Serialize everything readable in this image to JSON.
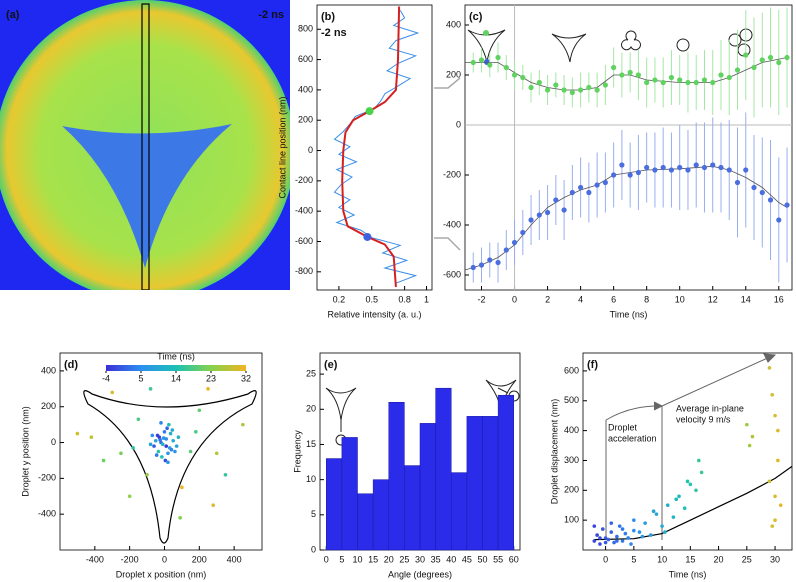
{
  "chart_data": [
    {
      "type": "image",
      "panel": "(a)",
      "annotation": "-2 ns"
    },
    {
      "type": "line",
      "panel": "(b)",
      "annotation": "-2 ns",
      "xlabel": "Relative intensity (a. u.)",
      "ylabel": "Contact line position (nm)",
      "xlim": [
        0,
        1.05
      ],
      "xticks": [
        0.2,
        0.5,
        0.8,
        1
      ],
      "ylim": [
        -920,
        960
      ],
      "yticks": [
        -800,
        -600,
        -400,
        -200,
        0,
        200,
        400,
        600,
        800
      ],
      "series": [
        {
          "color": "#3a8ee6",
          "x": [
            0.76,
            0.8,
            0.7,
            0.92,
            0.72,
            0.66,
            0.9,
            0.74,
            0.64,
            0.85,
            0.74,
            0.62,
            0.58,
            0.52,
            0.35,
            0.3,
            0.24,
            0.16,
            0.3,
            0.2,
            0.36,
            0.18,
            0.32,
            0.22,
            0.16,
            0.3,
            0.2,
            0.34,
            0.18,
            0.4,
            0.5,
            0.76,
            0.6,
            0.82,
            0.62,
            0.9,
            0.72
          ],
          "y": [
            925,
            875,
            825,
            775,
            725,
            675,
            625,
            575,
            525,
            475,
            425,
            375,
            325,
            275,
            225,
            175,
            125,
            75,
            25,
            -25,
            -75,
            -125,
            -175,
            -225,
            -275,
            -325,
            -375,
            -425,
            -475,
            -525,
            -575,
            -625,
            -675,
            -725,
            -775,
            -825,
            -875
          ]
        },
        {
          "color": "#d62020",
          "x": [
            0.75,
            0.74,
            0.72,
            0.62,
            0.48,
            0.33,
            0.26,
            0.24,
            0.23,
            0.24,
            0.28,
            0.46,
            0.62,
            0.7,
            0.72
          ],
          "y": [
            950,
            600,
            400,
            320,
            260,
            200,
            120,
            0,
            -200,
            -400,
            -500,
            -570,
            -620,
            -700,
            -900
          ]
        }
      ],
      "points": [
        {
          "color": "#4ad34a",
          "x": 0.48,
          "y": 260
        },
        {
          "color": "#3d5fe0",
          "x": 0.46,
          "y": -570
        }
      ]
    },
    {
      "type": "errorbar",
      "panel": "(c)",
      "xlabel": "Time (ns)",
      "xlim": [
        -3,
        16.8
      ],
      "xticks": [
        -2,
        0,
        2,
        4,
        6,
        8,
        10,
        12,
        14,
        16
      ],
      "ylim": [
        -660,
        480
      ],
      "yticks": [
        -600,
        -400,
        -200,
        0,
        200,
        400
      ],
      "x": [
        -2.5,
        -2,
        -1.5,
        -1,
        -0.5,
        0,
        0.5,
        1,
        1.5,
        2,
        2.5,
        3,
        3.5,
        4,
        4.5,
        5,
        5.5,
        6,
        6.5,
        7,
        7.5,
        8,
        8.5,
        9,
        9.5,
        10,
        10.5,
        11,
        11.5,
        12,
        12.5,
        13,
        13.5,
        14,
        14.5,
        15,
        15.5,
        16,
        16.5
      ],
      "series": [
        {
          "color": "#5ed35e",
          "errcolor": "#a6e6a6",
          "values": [
            250,
            260,
            240,
            270,
            230,
            200,
            190,
            150,
            170,
            140,
            160,
            140,
            130,
            140,
            150,
            140,
            160,
            230,
            200,
            210,
            200,
            170,
            180,
            170,
            190,
            180,
            170,
            170,
            180,
            170,
            200,
            190,
            220,
            280,
            230,
            260,
            270,
            250,
            270
          ],
          "errors": [
            40,
            50,
            50,
            60,
            50,
            60,
            50,
            60,
            50,
            60,
            50,
            60,
            60,
            70,
            60,
            70,
            80,
            80,
            90,
            80,
            100,
            100,
            90,
            100,
            110,
            100,
            120,
            110,
            120,
            130,
            140,
            150,
            160,
            180,
            200,
            190,
            200,
            210,
            200
          ],
          "fit": {
            "x": [
              -3,
              -1,
              0,
              1,
              2,
              3,
              4,
              5,
              6,
              7,
              8,
              10,
              12,
              13,
              14,
              15,
              16.5
            ],
            "values": [
              250,
              250,
              210,
              170,
              150,
              140,
              140,
              150,
              200,
              200,
              180,
              170,
              170,
              190,
              220,
              250,
              270
            ]
          }
        },
        {
          "color": "#4a6ee0",
          "errcolor": "#98aef0",
          "values": [
            -570,
            -560,
            -540,
            -550,
            -500,
            -470,
            -430,
            -380,
            -360,
            -350,
            -300,
            -340,
            -270,
            -250,
            -270,
            -240,
            -230,
            -200,
            -160,
            -200,
            -190,
            -170,
            -180,
            -170,
            -180,
            -170,
            -180,
            -160,
            -170,
            -160,
            -170,
            -180,
            -230,
            -180,
            -250,
            -270,
            -300,
            -380,
            -320
          ],
          "errors": [
            60,
            70,
            70,
            80,
            80,
            90,
            90,
            100,
            100,
            110,
            100,
            120,
            110,
            120,
            120,
            130,
            120,
            130,
            140,
            130,
            150,
            140,
            150,
            160,
            150,
            170,
            160,
            170,
            180,
            190,
            180,
            200,
            220,
            230,
            210,
            220,
            240,
            250,
            230
          ],
          "fit": {
            "x": [
              -3,
              -2,
              -1,
              0,
              1,
              2,
              3,
              4,
              5,
              6,
              8,
              10,
              12,
              13,
              14,
              15,
              16,
              16.5
            ],
            "values": [
              -580,
              -560,
              -530,
              -480,
              -400,
              -330,
              -290,
              -260,
              -240,
              -200,
              -180,
              -175,
              -165,
              -180,
              -210,
              -250,
              -310,
              -330
            ]
          }
        }
      ]
    },
    {
      "type": "scatter",
      "panel": "(d)",
      "xlabel": "Droplet x position (nm)",
      "ylabel": "Droplet y position (nm)",
      "xlim": [
        -600,
        560
      ],
      "xticks": [
        -400,
        -200,
        0,
        200,
        400
      ],
      "ylim": [
        -600,
        500
      ],
      "yticks": [
        -400,
        -200,
        0,
        200,
        400
      ],
      "colorbar": {
        "label": "Time (ns)",
        "ticks": [
          -4,
          5,
          14,
          23,
          32
        ],
        "clim": [
          -4,
          32
        ],
        "colormap": [
          "#3b2fd6",
          "#2d8ef0",
          "#1cc0b4",
          "#84d24c",
          "#f2b424"
        ]
      },
      "x": [
        -20,
        10,
        30,
        -40,
        50,
        -60,
        0,
        20,
        -10,
        40,
        -30,
        60,
        -50,
        15,
        -15,
        35,
        -35,
        5,
        25,
        -25,
        70,
        -70,
        45,
        -45,
        10,
        -5,
        80,
        -80,
        20,
        -20,
        -420,
        -300,
        -250,
        -150,
        -100,
        100,
        200,
        300,
        350,
        250,
        -200,
        150,
        -500,
        450,
        -350,
        280,
        -80,
        90,
        -180,
        180
      ],
      "y": [
        0,
        20,
        -30,
        40,
        10,
        -20,
        60,
        -60,
        -10,
        -40,
        30,
        -50,
        10,
        80,
        -80,
        50,
        -50,
        -100,
        100,
        15,
        -20,
        40,
        70,
        -70,
        -20,
        25,
        30,
        -10,
        -110,
        110,
        30,
        280,
        -60,
        130,
        -180,
        -250,
        180,
        -60,
        -180,
        300,
        -300,
        -50,
        50,
        100,
        -100,
        -350,
        300,
        -420,
        -30,
        60
      ],
      "t": [
        2,
        5,
        8,
        -2,
        10,
        0,
        3,
        7,
        12,
        4,
        -3,
        6,
        9,
        1,
        14,
        11,
        15,
        -1,
        13,
        2,
        8,
        5,
        10,
        3,
        -4,
        6,
        12,
        9,
        7,
        4,
        28,
        30,
        22,
        18,
        25,
        32,
        20,
        27,
        16,
        31,
        24,
        19,
        29,
        26,
        21,
        30,
        17,
        23,
        15,
        18
      ]
    },
    {
      "type": "histogram",
      "panel": "(e)",
      "xlabel": "Angle (degrees)",
      "ylabel": "Frequency",
      "xlim": [
        -2,
        62
      ],
      "xticks": [
        0,
        5,
        10,
        15,
        20,
        25,
        30,
        35,
        40,
        45,
        50,
        55,
        60
      ],
      "ylim": [
        0,
        28
      ],
      "yticks": [
        0,
        5,
        10,
        15,
        20,
        25
      ],
      "color": "#2b2bea",
      "bins": [
        0,
        5,
        10,
        15,
        20,
        25,
        30,
        35,
        40,
        45,
        50,
        55,
        60
      ],
      "counts": [
        13,
        16,
        8,
        10,
        21,
        12,
        18,
        23,
        11,
        19,
        19,
        22
      ]
    },
    {
      "type": "scatter",
      "panel": "(f)",
      "xlabel": "Time (ns)",
      "ylabel": "Droplet displacement (nm)",
      "xlim": [
        -4,
        33
      ],
      "xticks": [
        0,
        5,
        10,
        15,
        20,
        25,
        30
      ],
      "ylim": [
        0,
        660
      ],
      "yticks": [
        100,
        200,
        300,
        400,
        500,
        600
      ],
      "annotations": [
        "Droplet",
        "acceleration",
        "Average in-plane",
        "velocity 9 m/s"
      ],
      "x": [
        -2,
        -1.5,
        -1,
        -0.5,
        0,
        0.5,
        1,
        1.5,
        2,
        2.5,
        3,
        3.5,
        4,
        4.5,
        5,
        -2,
        -1,
        0,
        1,
        2,
        3,
        4,
        5,
        6,
        7,
        8,
        9,
        10,
        11,
        12,
        13,
        14,
        15,
        16,
        17,
        6.5,
        8.5,
        10.5,
        12.5,
        14.5,
        16.5,
        25,
        25.5,
        26,
        29,
        29.5,
        30,
        30.5,
        29,
        30,
        31,
        29.5,
        30,
        30.5
      ],
      "y": [
        30,
        50,
        20,
        70,
        40,
        35,
        60,
        25,
        45,
        80,
        30,
        55,
        40,
        20,
        65,
        80,
        40,
        25,
        90,
        30,
        70,
        40,
        100,
        60,
        90,
        50,
        120,
        80,
        150,
        110,
        180,
        140,
        220,
        200,
        260,
        45,
        130,
        60,
        170,
        230,
        300,
        420,
        350,
        380,
        610,
        520,
        450,
        300,
        230,
        180,
        150,
        80,
        100,
        400
      ],
      "fit": {
        "x": [
          -2,
          5,
          10,
          15,
          20,
          25,
          30,
          33
        ],
        "y": [
          35,
          38,
          55,
          100,
          145,
          190,
          240,
          280
        ]
      }
    }
  ]
}
